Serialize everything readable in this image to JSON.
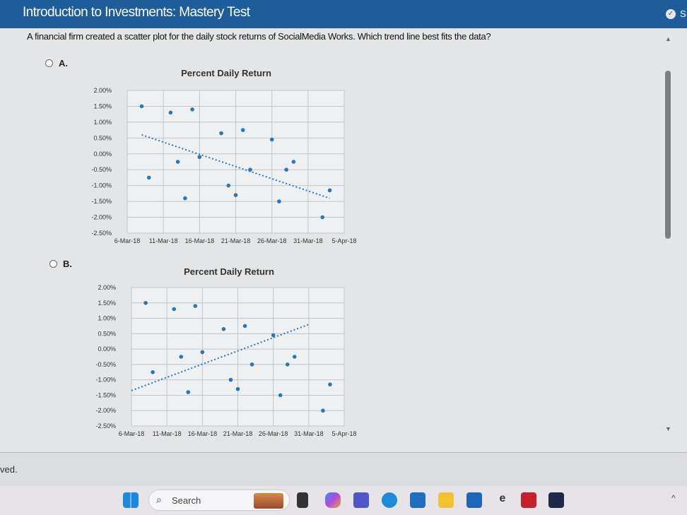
{
  "header": {
    "title": "Introduction to Investments: Mastery Test",
    "status_letter": "S"
  },
  "question": "A financial firm created a scatter plot for the daily stock returns of SocialMedia Works. Which trend line best fits the data?",
  "options": [
    {
      "label": "A."
    },
    {
      "label": "B."
    }
  ],
  "footer_text": "ved.",
  "taskbar": {
    "search_label": "Search",
    "icons": [
      "windows-start",
      "search",
      "widgets",
      "task-view",
      "copilot",
      "teams",
      "edge",
      "store",
      "file-explorer",
      "dell",
      "e-app",
      "mcafee",
      "webex"
    ]
  },
  "colors": {
    "header": "#1f5c9c",
    "point": "#2e75b6"
  },
  "chart_data": [
    {
      "type": "scatter",
      "option": "A",
      "title": "Percent Daily Return",
      "y_ticks": [
        "2.00%",
        "1.50%",
        "1.00%",
        "0.50%",
        "0.00%",
        "-0.50%",
        "-1.00%",
        "-1.50%",
        "-2.00%",
        "-2.50%"
      ],
      "x_ticks": [
        "6-Mar-18",
        "11-Mar-18",
        "16-Mar-18",
        "21-Mar-18",
        "26-Mar-18",
        "31-Mar-18",
        "5-Apr-18"
      ],
      "ylim": [
        -2.5,
        2.0
      ],
      "xlim": [
        "6-Mar-18",
        "5-Apr-18"
      ],
      "grid": true,
      "points": [
        [
          "8-Mar-18",
          1.5
        ],
        [
          "9-Mar-18",
          -0.75
        ],
        [
          "12-Mar-18",
          1.3
        ],
        [
          "13-Mar-18",
          -0.25
        ],
        [
          "14-Mar-18",
          -1.4
        ],
        [
          "15-Mar-18",
          1.4
        ],
        [
          "16-Mar-18",
          -0.1
        ],
        [
          "19-Mar-18",
          0.65
        ],
        [
          "20-Mar-18",
          -1.0
        ],
        [
          "21-Mar-18",
          -1.3
        ],
        [
          "22-Mar-18",
          0.75
        ],
        [
          "23-Mar-18",
          -0.5
        ],
        [
          "26-Mar-18",
          0.45
        ],
        [
          "27-Mar-18",
          -1.5
        ],
        [
          "28-Mar-18",
          -0.5
        ],
        [
          "29-Mar-18",
          -0.25
        ],
        [
          "2-Apr-18",
          -2.0
        ],
        [
          "3-Apr-18",
          -1.15
        ]
      ],
      "trend_line": [
        [
          "8-Mar-18",
          0.6
        ],
        [
          "3-Apr-18",
          -1.4
        ]
      ]
    },
    {
      "type": "scatter",
      "option": "B",
      "title": "Percent Daily Return",
      "y_ticks": [
        "2.00%",
        "1.50%",
        "1.00%",
        "0.50%",
        "0.00%",
        "-0.50%",
        "-1.00%",
        "-1.50%",
        "-2.00%",
        "-2.50%"
      ],
      "x_ticks": [
        "6-Mar-18",
        "11-Mar-18",
        "16-Mar-18",
        "21-Mar-18",
        "26-Mar-18",
        "31-Mar-18",
        "5-Apr-18"
      ],
      "ylim": [
        -2.5,
        2.0
      ],
      "xlim": [
        "6-Mar-18",
        "5-Apr-18"
      ],
      "grid": true,
      "points": [
        [
          "8-Mar-18",
          1.5
        ],
        [
          "9-Mar-18",
          -0.75
        ],
        [
          "12-Mar-18",
          1.3
        ],
        [
          "13-Mar-18",
          -0.25
        ],
        [
          "14-Mar-18",
          -1.4
        ],
        [
          "15-Mar-18",
          1.4
        ],
        [
          "16-Mar-18",
          -0.1
        ],
        [
          "19-Mar-18",
          0.65
        ],
        [
          "20-Mar-18",
          -1.0
        ],
        [
          "21-Mar-18",
          -1.3
        ],
        [
          "22-Mar-18",
          0.75
        ],
        [
          "23-Mar-18",
          -0.5
        ],
        [
          "26-Mar-18",
          0.45
        ],
        [
          "27-Mar-18",
          -1.5
        ],
        [
          "28-Mar-18",
          -0.5
        ],
        [
          "29-Mar-18",
          -0.25
        ],
        [
          "2-Apr-18",
          -2.0
        ],
        [
          "3-Apr-18",
          -1.15
        ]
      ],
      "trend_line": [
        [
          "6-Mar-18",
          -1.35
        ],
        [
          "31-Mar-18",
          0.8
        ]
      ]
    }
  ]
}
